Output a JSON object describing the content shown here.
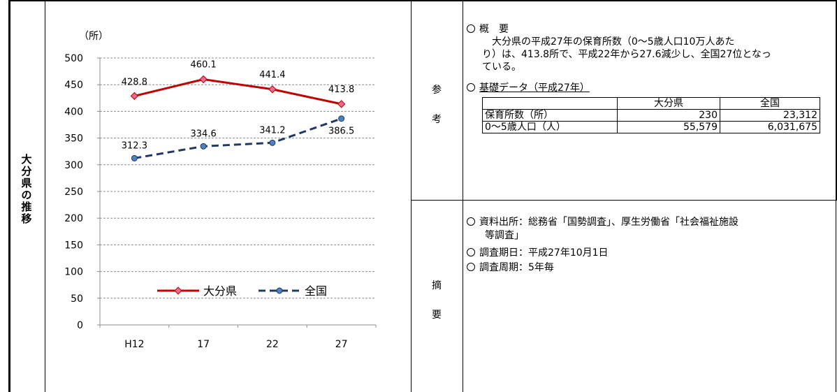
{
  "section_label": [
    "大",
    "分",
    "県",
    "の",
    "推",
    "移"
  ],
  "ref_label": [
    "参",
    "考"
  ],
  "summary_label": [
    "摘",
    "要"
  ],
  "chart_data": {
    "type": "line",
    "unit_label": "（所）",
    "categories": [
      "H12",
      "17",
      "22",
      "27"
    ],
    "ylim": [
      0,
      500
    ],
    "yticks": [
      0,
      50,
      100,
      150,
      200,
      250,
      300,
      350,
      400,
      450,
      500
    ],
    "grid": true,
    "legend_position": "bottom-center",
    "series": [
      {
        "name": "大分県",
        "values": [
          428.8,
          460.1,
          441.4,
          413.8
        ],
        "labels": [
          "428.8",
          "460.1",
          "441.4",
          "413.8"
        ],
        "color": "#c00000",
        "style": "solid"
      },
      {
        "name": "全国",
        "values": [
          312.3,
          334.6,
          341.2,
          386.5
        ],
        "labels": [
          "312.3",
          "334.6",
          "341.2",
          "386.5"
        ],
        "color": "#1f3864",
        "style": "dashed"
      }
    ]
  },
  "ref": {
    "overview_heading": "概　要",
    "overview_lines": [
      "　大分県の平成27年の保育所数（0～5歳人口10万人あた",
      "り）は、413.8所で、平成22年から27.6減少し、全国27位となっ",
      "ている。"
    ],
    "basic_heading": "基礎データ（平成27年）",
    "table": {
      "headers": [
        "",
        "大分県",
        "全国"
      ],
      "rows": [
        {
          "label": "保育所数（所）",
          "oita": "230",
          "national": "23,312"
        },
        {
          "label": "0～5歳人口（人）",
          "oita": "55,579",
          "national": "6,031,675"
        }
      ]
    }
  },
  "summary": {
    "source_line1": "資料出所：総務省「国勢調査」、厚生労働省「社会福祉施設",
    "source_line2": "等調査」",
    "survey_date": "調査期日：平成27年10月1日",
    "survey_cycle": "調査周期：5年毎"
  }
}
